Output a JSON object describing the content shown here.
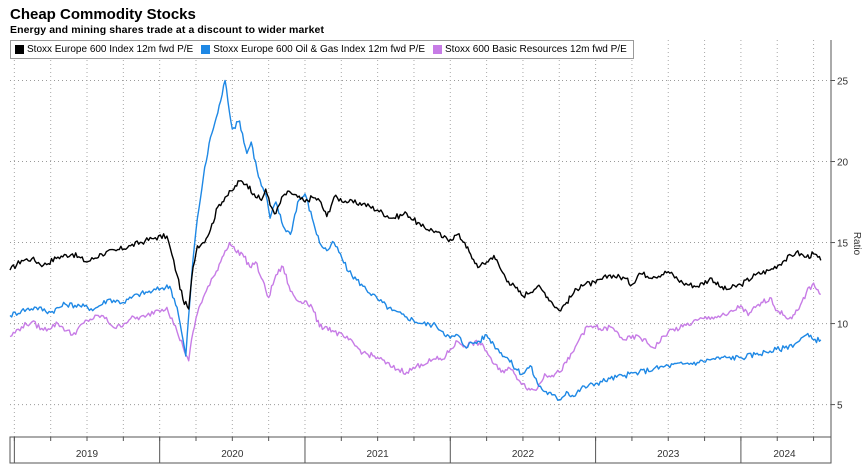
{
  "title": "Cheap Commodity Stocks",
  "subtitle": "Energy and mining shares trade at a discount to wider market",
  "chart_data": {
    "type": "line",
    "title": "Cheap Commodity Stocks",
    "subtitle": "Energy and mining shares trade at a discount to wider market",
    "xlabel": "",
    "ylabel": "Ratio",
    "xlim": [
      2018.97,
      2024.62
    ],
    "ylim": [
      3,
      27.5
    ],
    "yticks": [
      5,
      10,
      15,
      20,
      25
    ],
    "ytick_labels": [
      "5",
      "10",
      "15",
      "20",
      "25"
    ],
    "xticks": [
      2019.5,
      2020.5,
      2021.5,
      2022.5,
      2023.5,
      2024.3
    ],
    "xtick_labels": [
      "2019",
      "2020",
      "2021",
      "2022",
      "2023",
      "2024"
    ],
    "x_separators": [
      2019.0,
      2020.0,
      2021.0,
      2022.0,
      2023.0,
      2024.0
    ],
    "grid": true,
    "legend_position": "top-left",
    "series": [
      {
        "name": "Stoxx Europe 600 Index 12m fwd P/E",
        "color": "#000000",
        "x": [
          2018.97,
          2019.05,
          2019.12,
          2019.2,
          2019.3,
          2019.4,
          2019.5,
          2019.6,
          2019.7,
          2019.8,
          2019.9,
          2019.97,
          2020.05,
          2020.12,
          2020.16,
          2020.2,
          2020.23,
          2020.26,
          2020.3,
          2020.35,
          2020.4,
          2020.45,
          2020.5,
          2020.55,
          2020.6,
          2020.65,
          2020.7,
          2020.73,
          2020.76,
          2020.8,
          2020.85,
          2020.9,
          2020.95,
          2021.0,
          2021.05,
          2021.1,
          2021.15,
          2021.2,
          2021.3,
          2021.4,
          2021.5,
          2021.6,
          2021.7,
          2021.8,
          2021.9,
          2021.95,
          2022.0,
          2022.05,
          2022.1,
          2022.15,
          2022.2,
          2022.25,
          2022.3,
          2022.35,
          2022.4,
          2022.45,
          2022.5,
          2022.6,
          2022.65,
          2022.7,
          2022.75,
          2022.8,
          2022.85,
          2022.9,
          2023.0,
          2023.1,
          2023.2,
          2023.25,
          2023.3,
          2023.4,
          2023.5,
          2023.6,
          2023.7,
          2023.8,
          2023.85,
          2023.9,
          2024.0,
          2024.1,
          2024.2,
          2024.3,
          2024.38,
          2024.45,
          2024.5,
          2024.55
        ],
        "values": [
          13.3,
          13.9,
          14.0,
          13.6,
          14.1,
          14.3,
          13.8,
          14.3,
          14.5,
          14.8,
          15.1,
          15.3,
          15.4,
          13.0,
          11.5,
          10.9,
          13.5,
          14.8,
          15.0,
          15.8,
          17.2,
          17.8,
          18.2,
          18.8,
          18.6,
          18.0,
          17.6,
          18.3,
          17.3,
          16.8,
          17.9,
          18.1,
          17.8,
          17.5,
          17.8,
          17.6,
          16.6,
          17.8,
          17.5,
          17.4,
          17.0,
          16.5,
          16.8,
          16.0,
          15.7,
          15.3,
          15.2,
          15.5,
          15.0,
          14.0,
          13.5,
          13.8,
          14.2,
          13.3,
          12.6,
          12.2,
          11.7,
          12.3,
          11.9,
          11.3,
          10.8,
          11.3,
          11.9,
          12.4,
          12.5,
          13.0,
          12.8,
          12.4,
          13.1,
          12.9,
          13.2,
          12.5,
          12.3,
          12.8,
          12.3,
          12.1,
          12.4,
          13.0,
          13.3,
          13.9,
          14.4,
          14.1,
          14.3,
          13.9
        ]
      },
      {
        "name": "Stoxx Europe 600 Oil & Gas Index 12m fwd P/E",
        "color": "#1e88e5",
        "x": [
          2018.97,
          2019.05,
          2019.15,
          2019.25,
          2019.35,
          2019.45,
          2019.55,
          2019.65,
          2019.75,
          2019.85,
          2019.95,
          2020.02,
          2020.07,
          2020.12,
          2020.15,
          2020.18,
          2020.2,
          2020.23,
          2020.26,
          2020.3,
          2020.35,
          2020.4,
          2020.45,
          2020.5,
          2020.55,
          2020.6,
          2020.63,
          2020.67,
          2020.7,
          2020.73,
          2020.76,
          2020.8,
          2020.85,
          2020.9,
          2020.95,
          2021.0,
          2021.05,
          2021.1,
          2021.15,
          2021.2,
          2021.3,
          2021.4,
          2021.5,
          2021.6,
          2021.7,
          2021.8,
          2021.9,
          2021.95,
          2022.0,
          2022.05,
          2022.1,
          2022.15,
          2022.2,
          2022.25,
          2022.3,
          2022.35,
          2022.4,
          2022.45,
          2022.5,
          2022.55,
          2022.6,
          2022.65,
          2022.7,
          2022.75,
          2022.8,
          2022.85,
          2022.9,
          2023.0,
          2023.1,
          2023.2,
          2023.3,
          2023.4,
          2023.5,
          2023.6,
          2023.7,
          2023.8,
          2023.9,
          2024.0,
          2024.1,
          2024.2,
          2024.3,
          2024.38,
          2024.45,
          2024.5,
          2024.55
        ],
        "values": [
          10.5,
          10.8,
          11.0,
          10.7,
          11.2,
          11.1,
          10.9,
          11.5,
          11.3,
          11.8,
          12.0,
          12.2,
          12.3,
          11.0,
          9.5,
          8.0,
          10.5,
          14.0,
          16.5,
          19.0,
          21.5,
          23.0,
          25.0,
          22.0,
          22.5,
          20.5,
          21.2,
          19.5,
          18.5,
          18.0,
          16.5,
          17.5,
          16.0,
          15.5,
          17.5,
          18.0,
          16.5,
          15.0,
          14.5,
          15.0,
          13.2,
          12.3,
          11.5,
          10.8,
          10.4,
          10.0,
          9.9,
          9.5,
          9.1,
          9.3,
          8.6,
          8.8,
          8.9,
          9.3,
          8.7,
          8.2,
          7.8,
          7.2,
          6.9,
          7.4,
          6.3,
          5.8,
          5.6,
          5.3,
          5.8,
          5.5,
          6.0,
          6.3,
          6.6,
          6.8,
          7.0,
          7.2,
          7.4,
          7.5,
          7.6,
          7.8,
          7.9,
          7.9,
          8.1,
          8.3,
          8.5,
          8.8,
          9.3,
          9.0,
          9.0
        ]
      },
      {
        "name": "Stoxx 600 Basic Resources 12m fwd P/E",
        "color": "#c77ce6",
        "x": [
          2018.97,
          2019.05,
          2019.12,
          2019.2,
          2019.3,
          2019.4,
          2019.5,
          2019.6,
          2019.7,
          2019.8,
          2019.9,
          2019.97,
          2020.05,
          2020.12,
          2020.16,
          2020.2,
          2020.23,
          2020.27,
          2020.32,
          2020.38,
          2020.43,
          2020.48,
          2020.52,
          2020.57,
          2020.62,
          2020.66,
          2020.7,
          2020.75,
          2020.8,
          2020.85,
          2020.9,
          2020.95,
          2021.0,
          2021.05,
          2021.1,
          2021.15,
          2021.2,
          2021.3,
          2021.4,
          2021.5,
          2021.6,
          2021.7,
          2021.8,
          2021.9,
          2021.95,
          2022.0,
          2022.05,
          2022.1,
          2022.15,
          2022.2,
          2022.25,
          2022.3,
          2022.35,
          2022.4,
          2022.45,
          2022.5,
          2022.55,
          2022.6,
          2022.65,
          2022.7,
          2022.75,
          2022.8,
          2022.85,
          2022.9,
          2022.95,
          2023.0,
          2023.05,
          2023.1,
          2023.2,
          2023.3,
          2023.4,
          2023.5,
          2023.6,
          2023.7,
          2023.8,
          2023.9,
          2024.0,
          2024.05,
          2024.1,
          2024.15,
          2024.2,
          2024.25,
          2024.3,
          2024.35,
          2024.4,
          2024.45,
          2024.5,
          2024.55
        ],
        "values": [
          9.2,
          9.8,
          10.1,
          9.6,
          10.0,
          9.3,
          10.2,
          10.5,
          9.7,
          10.3,
          10.4,
          10.8,
          11.0,
          9.5,
          8.6,
          7.7,
          9.5,
          11.0,
          12.0,
          13.0,
          14.1,
          15.0,
          14.5,
          14.3,
          13.5,
          13.8,
          12.8,
          11.6,
          13.0,
          13.5,
          12.0,
          11.4,
          11.4,
          11.0,
          9.8,
          9.8,
          9.5,
          9.0,
          8.2,
          7.9,
          7.3,
          7.0,
          7.5,
          7.8,
          7.8,
          8.4,
          8.9,
          8.6,
          8.8,
          8.8,
          8.3,
          7.5,
          7.0,
          7.3,
          6.8,
          6.3,
          5.9,
          6.0,
          6.9,
          6.8,
          7.0,
          7.6,
          8.3,
          9.3,
          9.8,
          9.8,
          9.6,
          9.8,
          9.0,
          9.2,
          8.5,
          9.5,
          9.8,
          10.2,
          10.4,
          10.5,
          11.1,
          10.5,
          11.0,
          11.3,
          11.6,
          10.8,
          10.5,
          10.3,
          10.9,
          11.9,
          12.5,
          11.8
        ]
      }
    ]
  }
}
